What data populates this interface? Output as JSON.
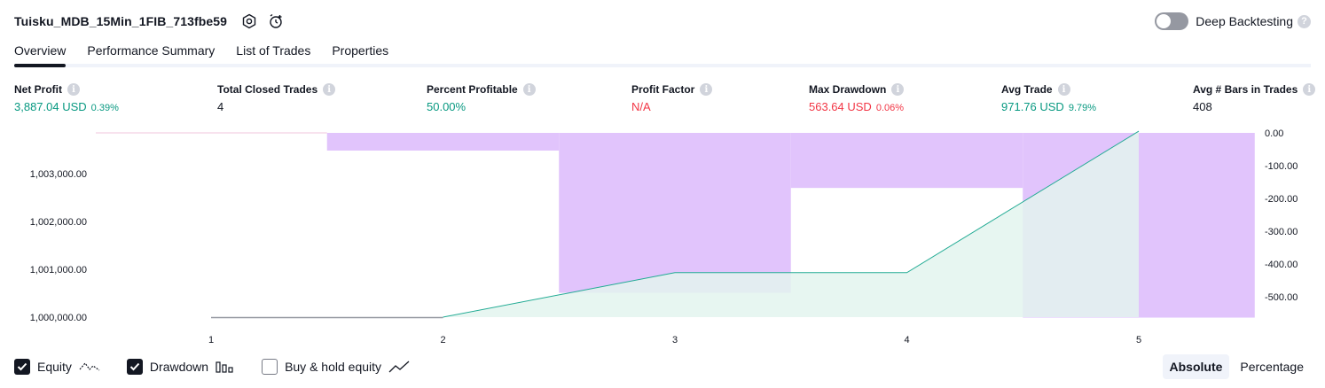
{
  "header": {
    "strategy_name": "Tuisku_MDB_15Min_1FIB_713fbe59",
    "deep_backtesting_label": "Deep Backtesting",
    "deep_backtesting_on": false
  },
  "tabs": [
    {
      "label": "Overview",
      "active": true
    },
    {
      "label": "Performance Summary",
      "active": false
    },
    {
      "label": "List of Trades",
      "active": false
    },
    {
      "label": "Properties",
      "active": false
    }
  ],
  "metrics": [
    {
      "label": "Net Profit",
      "value": "3,887.04 USD",
      "sub": "0.39%",
      "color": "green"
    },
    {
      "label": "Total Closed Trades",
      "value": "4",
      "sub": "",
      "color": "dark"
    },
    {
      "label": "Percent Profitable",
      "value": "50.00%",
      "sub": "",
      "color": "green"
    },
    {
      "label": "Profit Factor",
      "value": "N/A",
      "sub": "",
      "color": "red"
    },
    {
      "label": "Max Drawdown",
      "value": "563.64 USD",
      "sub": "0.06%",
      "color": "red"
    },
    {
      "label": "Avg Trade",
      "value": "971.76 USD",
      "sub": "9.79%",
      "color": "green"
    },
    {
      "label": "Avg # Bars in Trades",
      "value": "408",
      "sub": "",
      "color": "dark"
    }
  ],
  "colors": {
    "equity_line": "#22ab94",
    "equity_fill": "#e3f4ef",
    "drawdown_fill": "#e1c4fc",
    "buy_hold_line": "#9598a1",
    "positive": "#089981",
    "negative": "#f23645"
  },
  "chart_data": {
    "type": "area",
    "x_tick_labels": [
      "1",
      "2",
      "3",
      "4",
      "5"
    ],
    "left_axis": {
      "ticks": [
        "1,000,000.00",
        "1,001,000.00",
        "1,002,000.00",
        "1,003,000.00"
      ],
      "range": [
        1000000,
        1003850
      ]
    },
    "right_axis": {
      "ticks": [
        "0.00",
        "-100.00",
        "-200.00",
        "-300.00",
        "-400.00",
        "-500.00"
      ],
      "range": [
        0,
        -563.64
      ]
    },
    "series": [
      {
        "name": "Equity",
        "axis": "left",
        "x": [
          0,
          1,
          2,
          3,
          4,
          5
        ],
        "values": [
          1000000,
          1000000,
          1000000,
          1000930,
          1000930,
          1003887.04
        ]
      },
      {
        "name": "Drawdown",
        "axis": "right",
        "bars": [
          {
            "x_from": 0,
            "x_to": 0.5,
            "value": 0
          },
          {
            "x_from": 0.5,
            "x_to": 1.5,
            "value": 0
          },
          {
            "x_from": 1.5,
            "x_to": 2.5,
            "value": -54
          },
          {
            "x_from": 2.5,
            "x_to": 3.5,
            "value": -488
          },
          {
            "x_from": 3.5,
            "x_to": 4.5,
            "value": -168
          },
          {
            "x_from": 4.5,
            "x_to": 5.5,
            "value": -563.64
          }
        ]
      }
    ]
  },
  "legend": {
    "items": [
      {
        "label": "Equity",
        "checked": true,
        "icon": "equity-line-icon"
      },
      {
        "label": "Drawdown",
        "checked": true,
        "icon": "drawdown-bars-icon"
      },
      {
        "label": "Buy & hold equity",
        "checked": false,
        "icon": "trend-line-icon"
      }
    ]
  },
  "mode": {
    "absolute_label": "Absolute",
    "percentage_label": "Percentage",
    "active": "Absolute"
  }
}
